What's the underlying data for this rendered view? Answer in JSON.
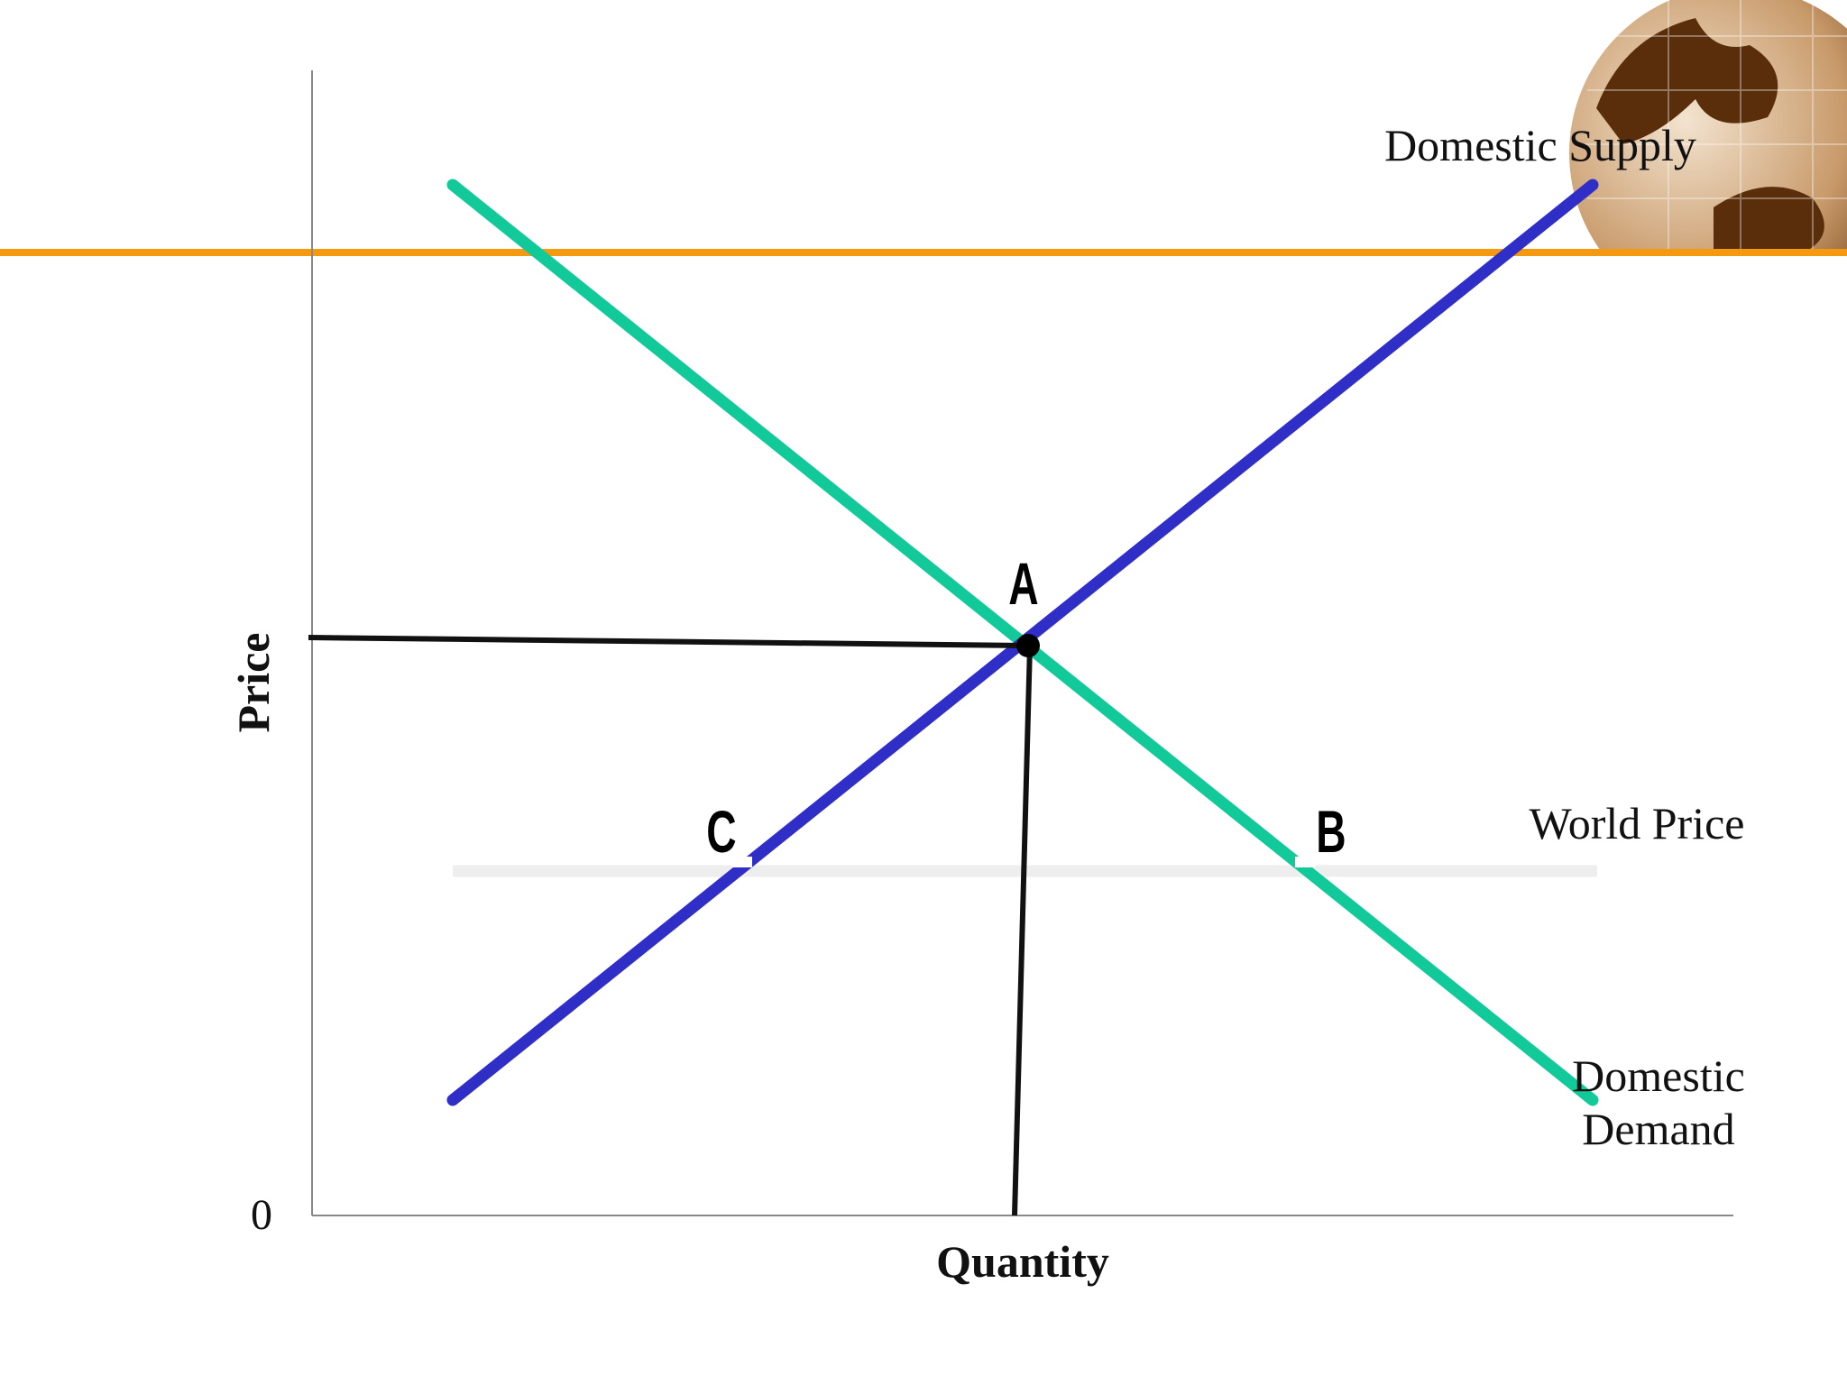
{
  "diagram": {
    "axes": {
      "y_label": "Price",
      "x_label": "Quantity",
      "origin_label": "0"
    },
    "curves": {
      "supply": {
        "label": "Domestic Supply",
        "color": "#2f2fc8"
      },
      "demand": {
        "label_lines": [
          "Domestic",
          "Demand"
        ],
        "color": "#12c99a"
      },
      "world_price": {
        "label": "World Price",
        "color": "#eeeeee"
      },
      "top_rule": {
        "color": "#f59a10"
      }
    },
    "points": {
      "a": "A",
      "b": "B",
      "c": "C"
    }
  }
}
